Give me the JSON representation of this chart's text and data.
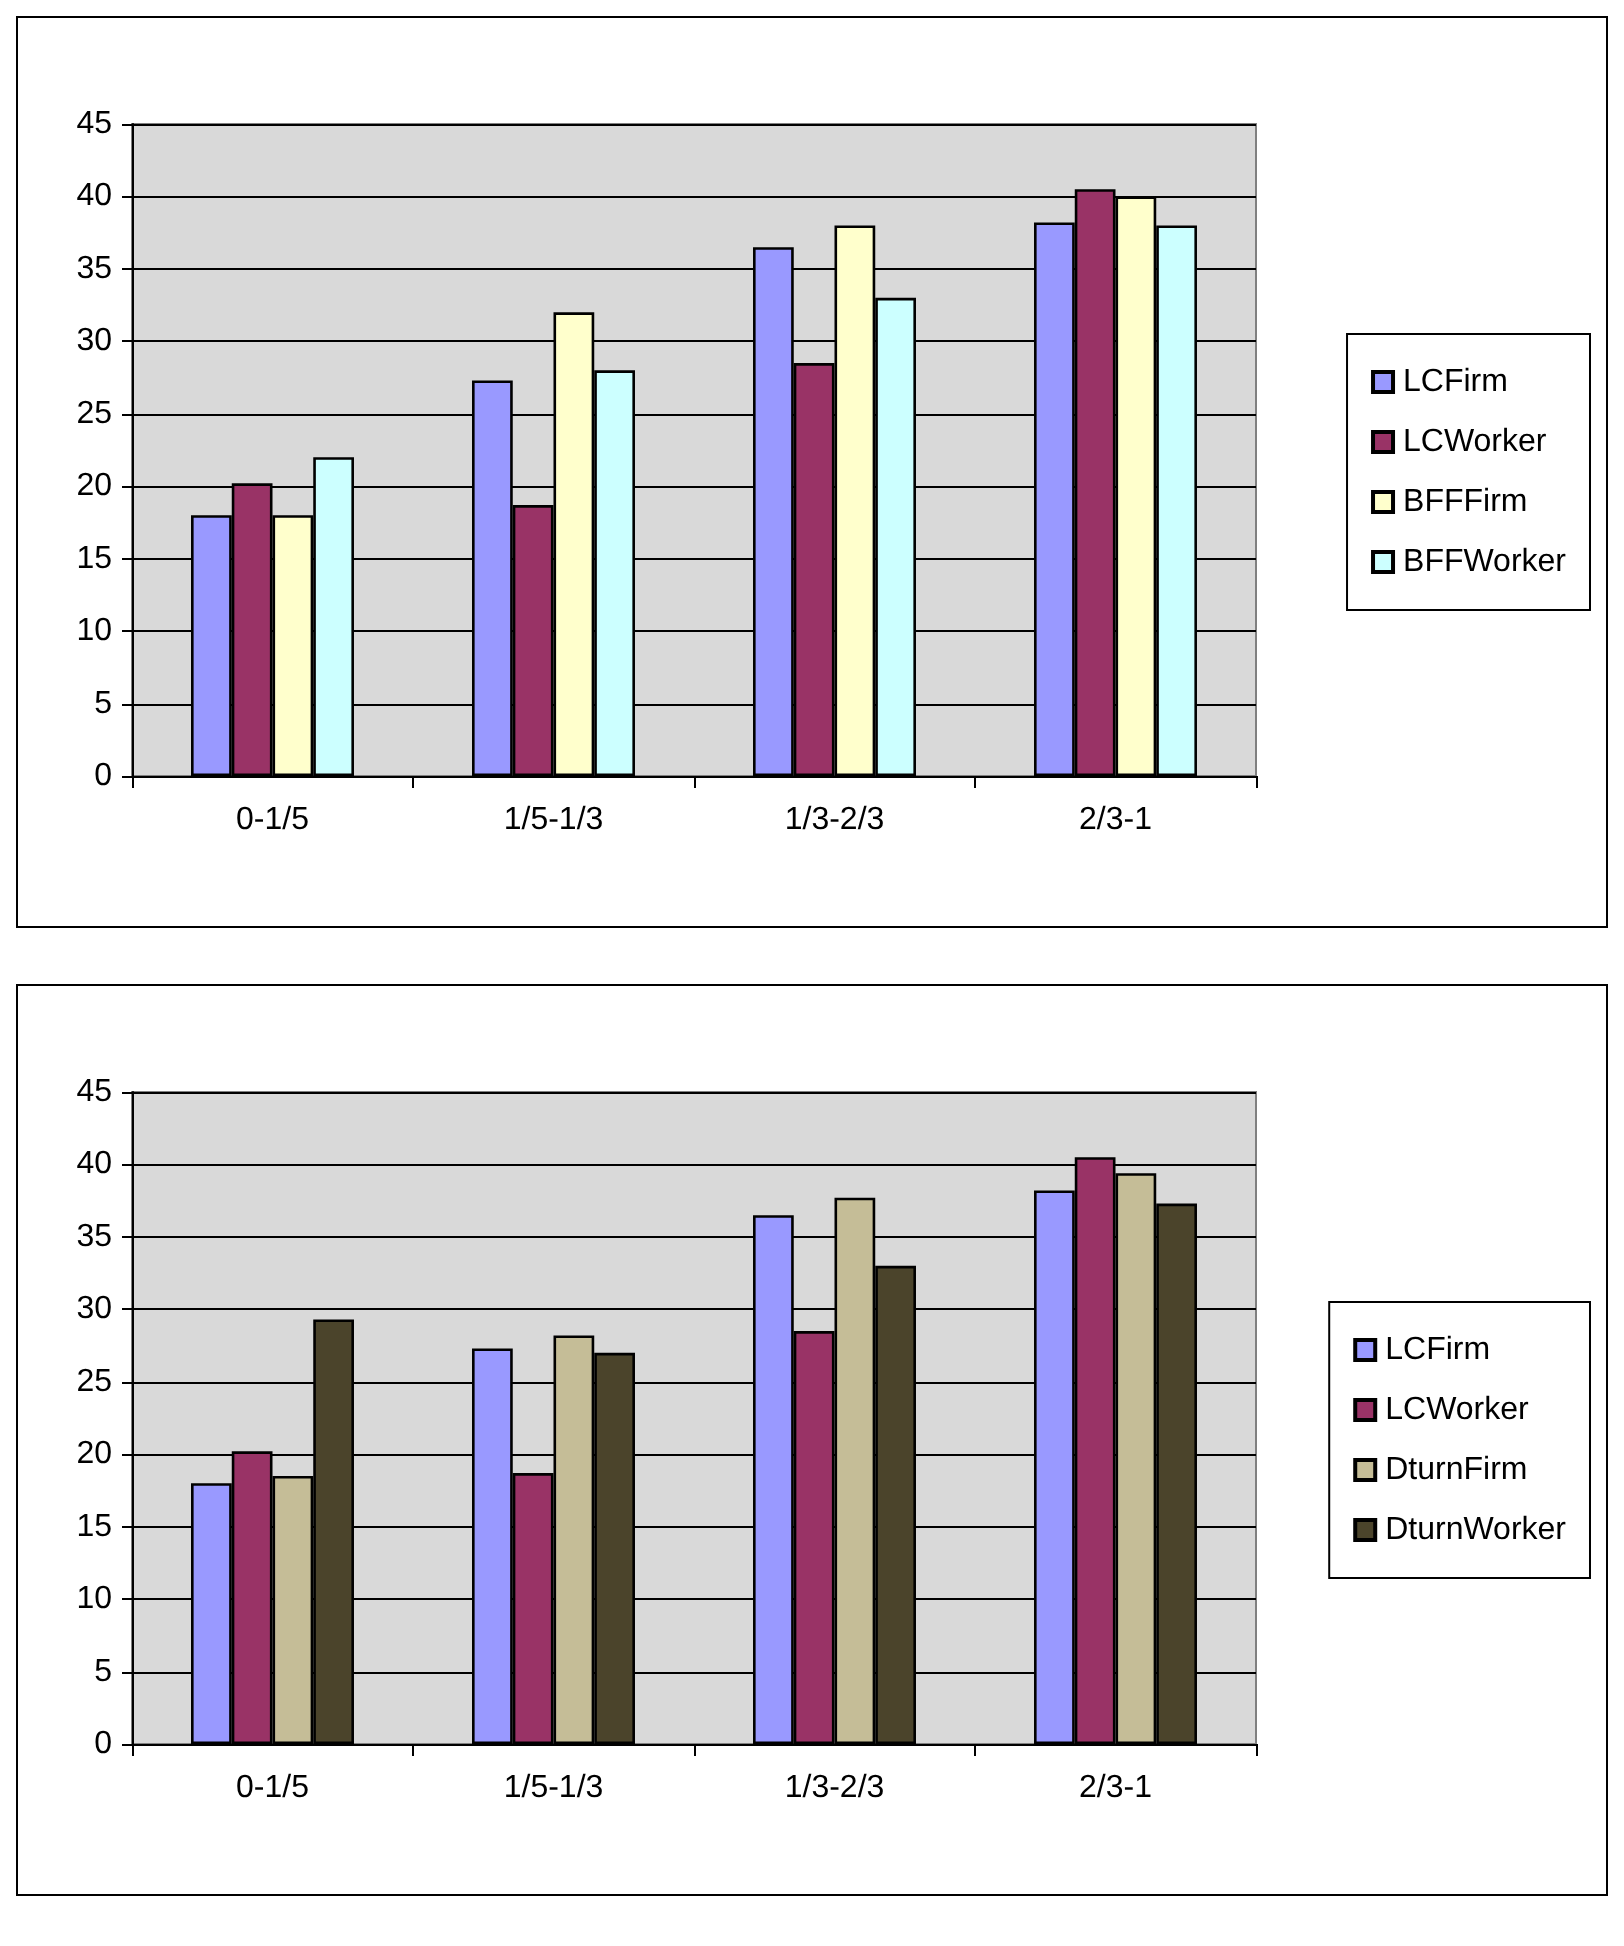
{
  "chart_data": [
    {
      "type": "bar",
      "categories": [
        "0-1/5",
        "1/5-1/3",
        "1/3-2/3",
        "2/3-1"
      ],
      "series": [
        {
          "name": "LCFirm",
          "color": "#9999ff",
          "values": [
            18,
            27.3,
            36.5,
            38.2
          ]
        },
        {
          "name": "LCWorker",
          "color": "#993366",
          "values": [
            20.2,
            18.7,
            28.5,
            40.5
          ]
        },
        {
          "name": "BFFFirm",
          "color": "#ffffcc",
          "values": [
            18,
            32,
            38,
            40
          ]
        },
        {
          "name": "BFFWorker",
          "color": "#ccffff",
          "values": [
            22,
            28,
            33,
            38
          ]
        }
      ],
      "ylim": [
        0,
        45
      ],
      "yticks": [
        0,
        5,
        10,
        15,
        20,
        25,
        30,
        35,
        40,
        45
      ],
      "grid": "y",
      "legend": "right"
    },
    {
      "type": "bar",
      "categories": [
        "0-1/5",
        "1/5-1/3",
        "1/3-2/3",
        "2/3-1"
      ],
      "series": [
        {
          "name": "LCFirm",
          "color": "#9999ff",
          "values": [
            18,
            27.3,
            36.5,
            38.2
          ]
        },
        {
          "name": "LCWorker",
          "color": "#993366",
          "values": [
            20.2,
            18.7,
            28.5,
            40.5
          ]
        },
        {
          "name": "DturnFirm",
          "color": "#c5bd97",
          "values": [
            18.5,
            28.2,
            37.7,
            39.4
          ]
        },
        {
          "name": "DturnWorker",
          "color": "#4b442b",
          "values": [
            29.3,
            27,
            33,
            37.3
          ]
        }
      ],
      "ylim": [
        0,
        45
      ],
      "yticks": [
        0,
        5,
        10,
        15,
        20,
        25,
        30,
        35,
        40,
        45
      ],
      "grid": "y",
      "legend": "right"
    }
  ]
}
